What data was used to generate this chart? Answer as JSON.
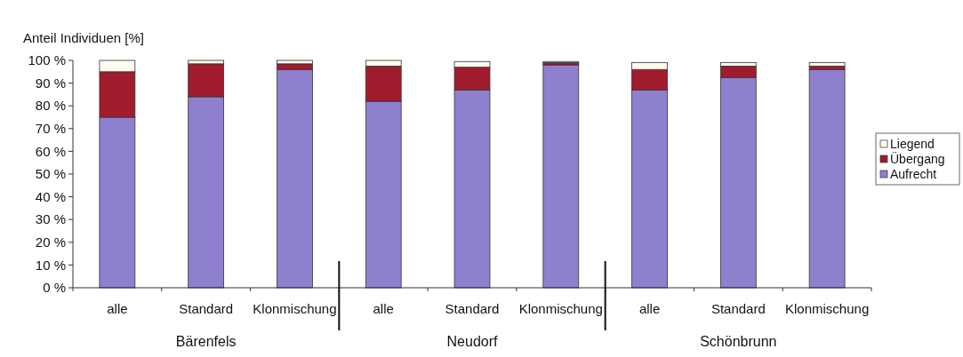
{
  "chart_data": {
    "type": "bar",
    "stacked": true,
    "ylabel": "Anteil Individuen [%]",
    "categories": [
      "alle",
      "Standard",
      "Klonmischung",
      "alle",
      "Standard",
      "Klonmischung",
      "alle",
      "Standard",
      "Klonmischung"
    ],
    "series": [
      {
        "name": "Aufrecht",
        "color": "#8f7fcf",
        "values": [
          75,
          84,
          96,
          82,
          87,
          98,
          87,
          92.5,
          96
        ]
      },
      {
        "name": "Übergang",
        "color": "#a01c2c",
        "values": [
          20,
          14.5,
          2.5,
          15.5,
          10,
          1,
          9,
          5,
          1.5
        ]
      },
      {
        "name": "Liegend",
        "color": "#fffbee",
        "values": [
          5,
          1.5,
          1.5,
          2.5,
          2.5,
          0.5,
          3,
          1.5,
          1.5
        ]
      }
    ],
    "ylim": [
      0,
      100
    ],
    "yticks": [
      {
        "value": 0,
        "label": "0 %"
      },
      {
        "value": 10,
        "label": "10 %"
      },
      {
        "value": 20,
        "label": "20 %"
      },
      {
        "value": 30,
        "label": "30 %"
      },
      {
        "value": 40,
        "label": "40 %"
      },
      {
        "value": 50,
        "label": "50 %"
      },
      {
        "value": 60,
        "label": "60 %"
      },
      {
        "value": 70,
        "label": "70 %"
      },
      {
        "value": 80,
        "label": "80 %"
      },
      {
        "value": 90,
        "label": "90 %"
      },
      {
        "value": 100,
        "label": "100 %"
      }
    ],
    "annotations": [
      "Bärenfels",
      "Neudorf",
      "Schönbrunn"
    ],
    "legend": "right"
  }
}
